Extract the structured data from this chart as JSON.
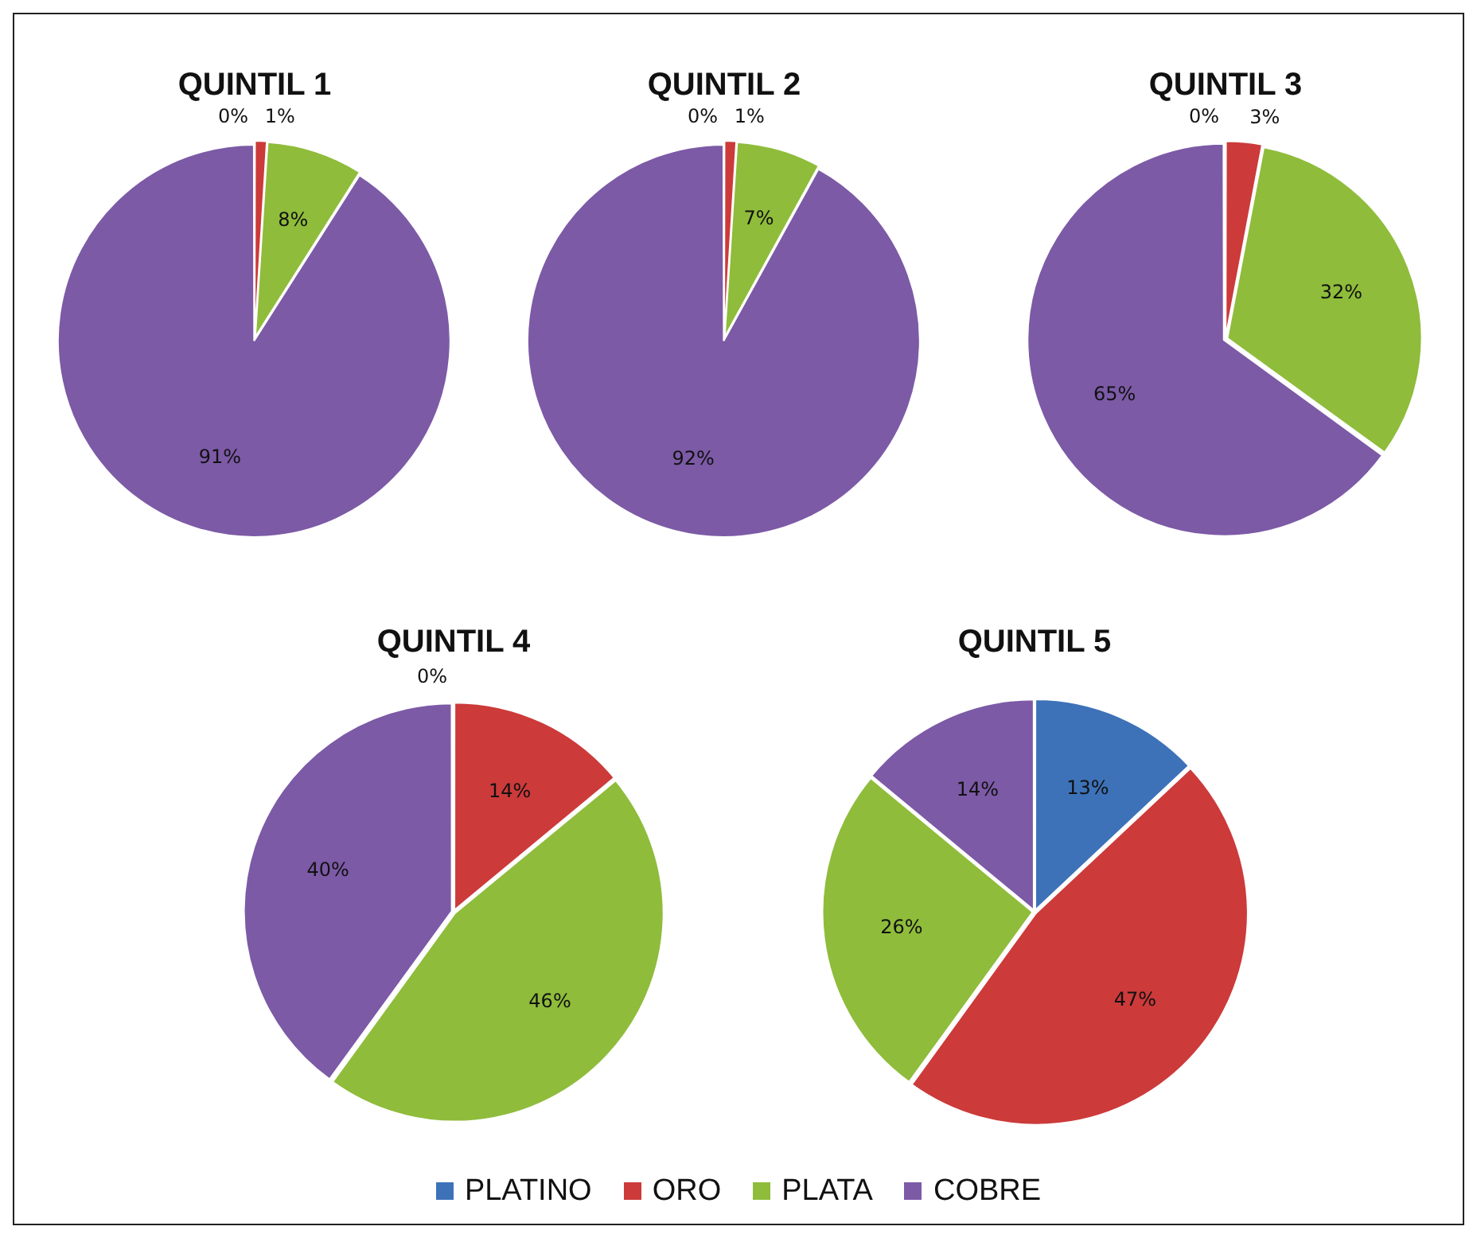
{
  "chart_data": [
    {
      "type": "pie",
      "title": "QUINTIL 1",
      "categories": [
        "PLATINO",
        "ORO",
        "PLATA",
        "COBRE"
      ],
      "values": [
        0,
        1,
        8,
        91
      ],
      "colors": [
        "#3d72b8",
        "#cc3a3a",
        "#8fbc3b",
        "#7c5aa6"
      ],
      "value_labels": [
        "0%",
        "1%",
        "8%",
        "91%"
      ],
      "legend": "bottom"
    },
    {
      "type": "pie",
      "title": "QUINTIL 2",
      "categories": [
        null,
        null,
        null,
        null
      ],
      "values": [
        0,
        1,
        7,
        92
      ],
      "colors": [
        "#3d72b8",
        "#cc3a3a",
        "#8fbc3b",
        "#7c5aa6"
      ],
      "value_labels": [
        "0%",
        "1%",
        "7%",
        "92%"
      ]
    },
    {
      "type": "pie",
      "title": "QUINTIL 3",
      "categories": [
        null,
        null,
        null,
        null
      ],
      "values": [
        0,
        3,
        32,
        65
      ],
      "colors": [
        "#3d72b8",
        "#cc3a3a",
        "#8fbc3b",
        "#7c5aa6"
      ],
      "value_labels": [
        "0%",
        "3%",
        "32%",
        "65%"
      ]
    },
    {
      "type": "pie",
      "title": "QUINTIL 4",
      "categories": [
        null,
        null,
        null,
        null
      ],
      "values": [
        0,
        14,
        46,
        40
      ],
      "colors": [
        "#3d72b8",
        "#cc3a3a",
        "#8fbc3b",
        "#7c5aa6"
      ],
      "value_labels": [
        "0%",
        "14%",
        "46%",
        "40%"
      ]
    },
    {
      "type": "pie",
      "title": "QUINTIL 5",
      "categories": [
        null,
        null,
        null,
        null
      ],
      "values": [
        13,
        47,
        26,
        14
      ],
      "colors": [
        "#3d72b8",
        "#cc3a3a",
        "#8fbc3b",
        "#7c5aa6"
      ],
      "value_labels": [
        "13%",
        "47%",
        "26%",
        "14%"
      ]
    }
  ]
}
